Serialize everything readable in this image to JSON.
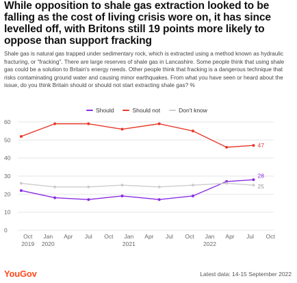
{
  "title": "While opposition to shale gas extraction looked to be falling as the cost of living crisis wore on, it has since levelled off, with Britons still 19 points more likely to oppose than support fracking",
  "subtitle": "Shale gas is natural gas trapped under sedimentary rock, which is extracted using a method known as hydraulic fracturing, or \"fracking\". There are large reserves of shale gas in Lancashire. Some people think that using shale gas could be a solution to Britain's energy needs. Other people think that fracking is a dangerous technique that risks contaminating ground water and causing minor earthquakes. From what you have seen or heard about the issue, do you think Britain should or should not start extracting shale gas? %",
  "footer": {
    "logo": "YouGov",
    "note": "Latest data: 14-15 September 2022"
  },
  "chart_data": {
    "type": "line",
    "title": "",
    "xlabel": "",
    "ylabel": "",
    "ylim": [
      0,
      60
    ],
    "yticks": [
      0,
      10,
      20,
      30,
      40,
      50,
      60
    ],
    "grid": true,
    "legend_position": "top",
    "x_ticks": [
      {
        "month": "Oct",
        "year": "2019",
        "pos": 0
      },
      {
        "month": "Jan",
        "year": "2020",
        "pos": 3
      },
      {
        "month": "Apr",
        "year": "",
        "pos": 6
      },
      {
        "month": "Jul",
        "year": "",
        "pos": 9
      },
      {
        "month": "Oct",
        "year": "",
        "pos": 12
      },
      {
        "month": "Jan",
        "year": "2021",
        "pos": 15
      },
      {
        "month": "Apr",
        "year": "",
        "pos": 18
      },
      {
        "month": "Jul",
        "year": "",
        "pos": 21
      },
      {
        "month": "Oct",
        "year": "",
        "pos": 24
      },
      {
        "month": "Jan",
        "year": "2022",
        "pos": 27
      },
      {
        "month": "Apr",
        "year": "",
        "pos": 30
      },
      {
        "month": "Jul",
        "year": "",
        "pos": 33
      },
      {
        "month": "Oct",
        "year": "",
        "pos": 36
      }
    ],
    "x_range": [
      -1.5,
      36.5
    ],
    "series": [
      {
        "name": "Should",
        "color": "#8a2be2",
        "x": [
          -1,
          4,
          9,
          14,
          19.5,
          24.5,
          29.5,
          33.5
        ],
        "values": [
          22,
          18,
          17,
          19,
          17,
          19,
          27,
          28
        ],
        "end_label": "28"
      },
      {
        "name": "Should not",
        "color": "#e8392b",
        "x": [
          -1,
          4,
          9,
          14,
          19.5,
          24.5,
          29.5,
          33.5
        ],
        "values": [
          52,
          59,
          59,
          56,
          59,
          55,
          46,
          47
        ],
        "end_label": "47"
      },
      {
        "name": "Don't know",
        "color": "#cccccc",
        "x": [
          -1,
          4,
          9,
          14,
          19.5,
          24.5,
          29.5,
          33.5
        ],
        "values": [
          26,
          24,
          24,
          25,
          24,
          25,
          26,
          25
        ],
        "end_label": "25"
      }
    ]
  }
}
